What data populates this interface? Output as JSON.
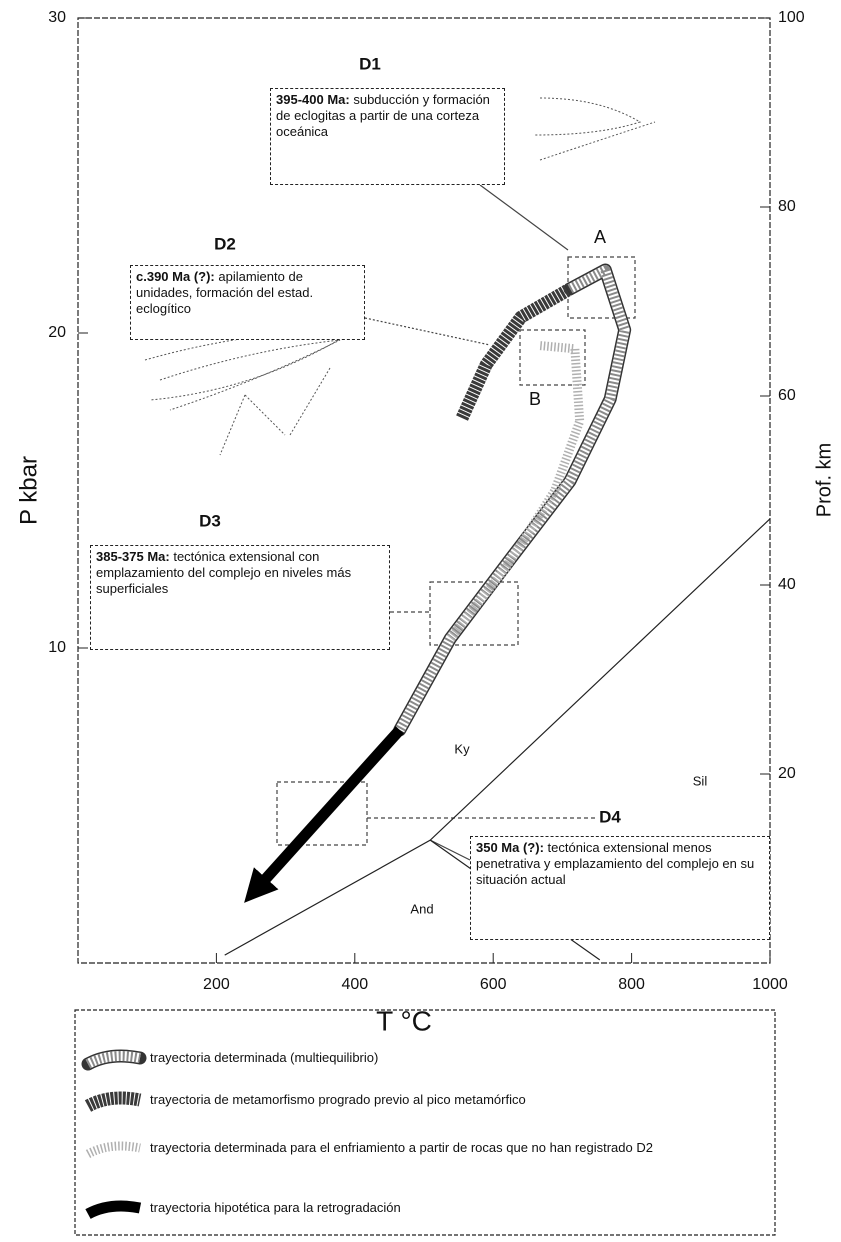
{
  "chart_data": {
    "type": "line",
    "xlabel": "T °C",
    "ylabel": "P kbar",
    "y2label": "Prof. km",
    "xlim": [
      0,
      1000
    ],
    "xticks": [
      200,
      400,
      600,
      800,
      1000
    ],
    "ylim": [
      0,
      30
    ],
    "yticks": [
      10,
      20,
      30
    ],
    "y2lim": [
      0,
      100
    ],
    "y2ticks": [
      20,
      40,
      60,
      80,
      100
    ],
    "series": [
      {
        "name": "trayectoria determinada (multiequilibrio)",
        "color": "#8a8a8a",
        "style": "hatched",
        "x": [
          711,
          762,
          790,
          769,
          711,
          624,
          538,
          465
        ],
        "values": [
          21.4,
          22.0,
          20.1,
          17.9,
          15.3,
          12.8,
          10.3,
          7.4
        ]
      },
      {
        "name": "trayectoria de metamorfismo progrado previo al pico metamórfico",
        "color": "#3a3a3a",
        "style": "dense",
        "x": [
          555,
          590,
          640,
          711
        ],
        "values": [
          17.3,
          19.0,
          20.5,
          21.4
        ]
      },
      {
        "name": "trayectoria determinada para el enfriamiento a partir de rocas que no han registrado D2",
        "color": "#b0b0b0",
        "style": "dotted",
        "x": [
          668,
          718,
          725,
          689,
          617,
          538
        ],
        "values": [
          19.6,
          19.5,
          17.2,
          15.0,
          12.5,
          10.3
        ]
      },
      {
        "name": "trayectoria hipotética para la retrogradación",
        "color": "#000000",
        "style": "arrow",
        "x": [
          465,
          256
        ],
        "values": [
          7.4,
          2.3
        ]
      }
    ],
    "reactions": [
      {
        "x": [
          212,
          509,
          1000
        ],
        "values": [
          0.25,
          3.9,
          14.1
        ]
      },
      {
        "x": [
          509,
          754
        ],
        "values": [
          3.9,
          0.1
        ]
      }
    ],
    "fields": [
      "Ky",
      "Sil",
      "And"
    ],
    "points": [
      "A",
      "B"
    ],
    "events": [
      {
        "title": "D1",
        "date": "395-400 Ma:",
        "text": "subducción y formación de eclogitas a partir de una corteza oceánica"
      },
      {
        "title": "D2",
        "date": "c.390 Ma (?):",
        "text": "apilamiento de unidades, formación del estad. eclogítico"
      },
      {
        "title": "D3",
        "date": "385-375 Ma:",
        "text": "tectónica extensional con emplazamiento del complejo en niveles más superficiales"
      },
      {
        "title": "D4",
        "date": "350 Ma (?):",
        "text": "tectónica extensional menos penetrativa y emplazamiento del complejo en su situación actual"
      }
    ]
  }
}
